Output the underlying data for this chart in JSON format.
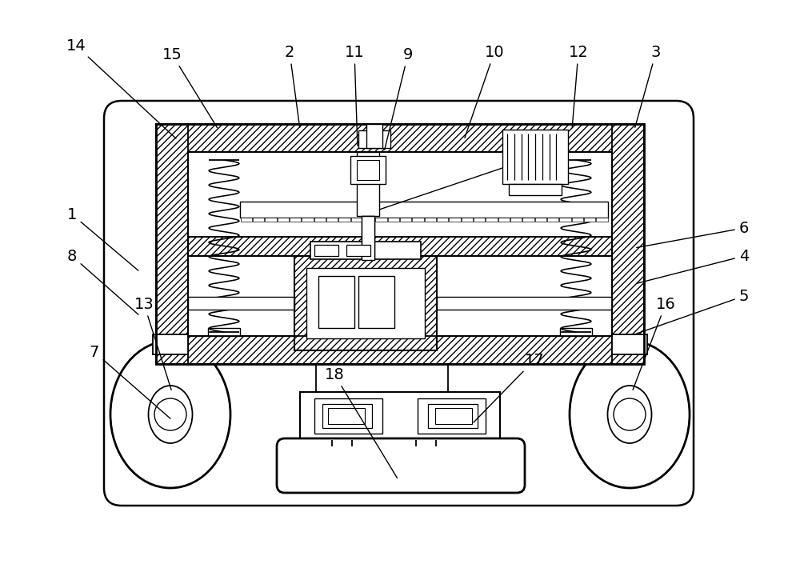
{
  "bg": "#ffffff",
  "lw": 1.3,
  "fig_w": 10.0,
  "fig_h": 7.15,
  "dpi": 100,
  "labels": [
    [
      "14",
      95,
      57,
      222,
      175
    ],
    [
      "15",
      215,
      68,
      273,
      162
    ],
    [
      "2",
      362,
      65,
      375,
      162
    ],
    [
      "11",
      443,
      65,
      447,
      185
    ],
    [
      "9",
      510,
      68,
      480,
      190
    ],
    [
      "10",
      618,
      65,
      580,
      175
    ],
    [
      "12",
      723,
      65,
      715,
      162
    ],
    [
      "3",
      820,
      65,
      793,
      162
    ],
    [
      "1",
      90,
      268,
      175,
      340
    ],
    [
      "6",
      930,
      285,
      793,
      310
    ],
    [
      "4",
      930,
      320,
      793,
      355
    ],
    [
      "5",
      930,
      370,
      793,
      418
    ],
    [
      "8",
      90,
      320,
      175,
      395
    ],
    [
      "13",
      180,
      380,
      215,
      490
    ],
    [
      "7",
      118,
      440,
      215,
      525
    ],
    [
      "16",
      832,
      380,
      790,
      490
    ],
    [
      "17",
      668,
      450,
      590,
      530
    ],
    [
      "18",
      418,
      468,
      498,
      600
    ]
  ]
}
